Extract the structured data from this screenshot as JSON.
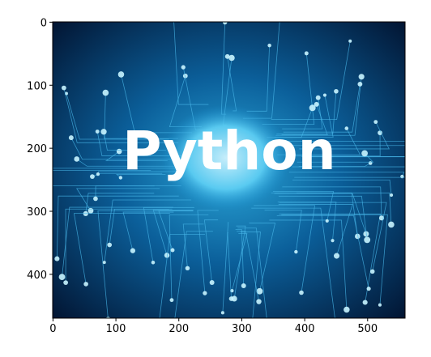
{
  "chart_data": {
    "type": "image",
    "image_text": "Python",
    "xlim": [
      -0.5,
      559.5
    ],
    "ylim": [
      469.5,
      -0.5
    ],
    "xticks": [
      0,
      100,
      200,
      300,
      400,
      500
    ],
    "yticks": [
      0,
      100,
      200,
      300,
      400
    ]
  }
}
